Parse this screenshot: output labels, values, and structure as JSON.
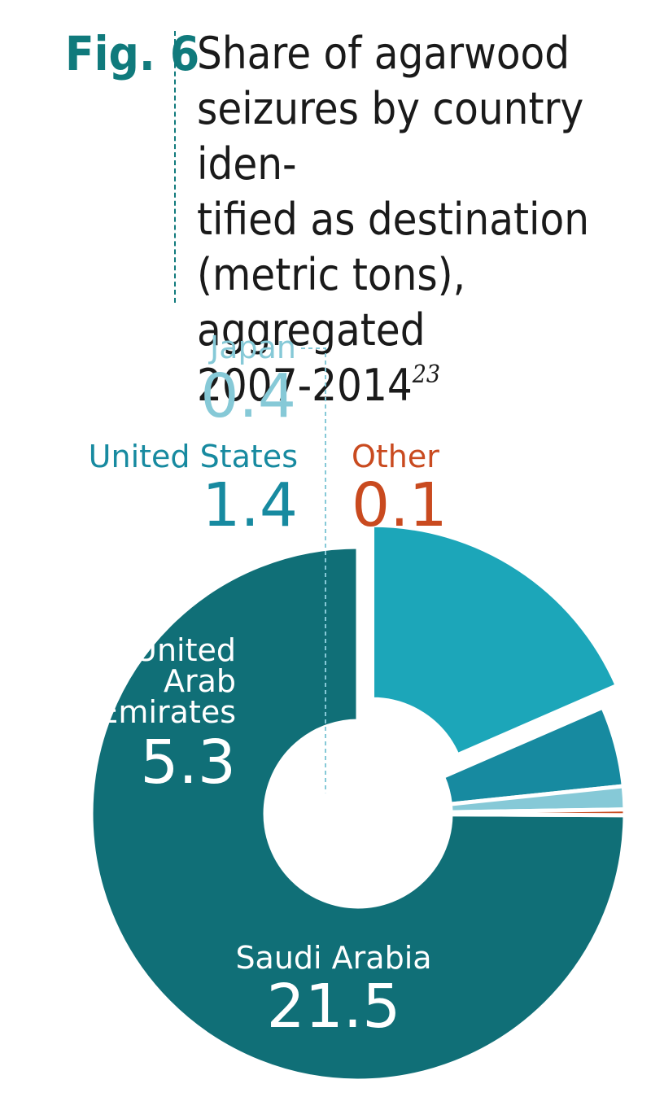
{
  "figure": {
    "label": "Fig. 6",
    "title": "Share of agarwood\nseizures by country iden-\ntified as destination\n(metric tons), aggregated\n2007-2014",
    "footnote": "23"
  },
  "chart_data": {
    "type": "pie",
    "donut": true,
    "title": "Share of agarwood seizures by country identified as destination (metric tons), aggregated 2007-2014",
    "unit": "metric tons",
    "slices": [
      {
        "name": "Saudi Arabia",
        "value": 21.5,
        "value_label": "21.5",
        "color": "#106f77",
        "label_color": "#ffffff",
        "exploded": false
      },
      {
        "name": "United Arab Emirates",
        "value": 5.3,
        "value_label": "5.3",
        "color": "#1ca6b9",
        "label_color": "#ffffff",
        "exploded": true
      },
      {
        "name": "United States",
        "value": 1.4,
        "value_label": "1.4",
        "color": "#178aa0",
        "label_color": "#178aa0",
        "exploded": false
      },
      {
        "name": "Japan",
        "value": 0.4,
        "value_label": "0.4",
        "color": "#86c9d7",
        "label_color": "#86c9d7",
        "exploded": false
      },
      {
        "name": "Other",
        "value": 0.1,
        "value_label": "0.1",
        "color": "#c94a1f",
        "label_color": "#c94a1f",
        "exploded": false
      }
    ]
  }
}
